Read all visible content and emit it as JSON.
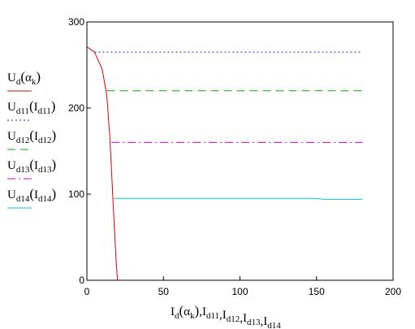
{
  "chart_data": {
    "type": "line",
    "xlim": [
      0,
      200
    ],
    "ylim": [
      0,
      300
    ],
    "x_ticks": [
      0,
      50,
      100,
      150,
      200
    ],
    "y_ticks": [
      0,
      100,
      200,
      300
    ],
    "grid": false,
    "legend_placement": "left",
    "xlabel_parts": [
      {
        "base": "I",
        "sub": "d",
        "arg": "α",
        "argsub": "k"
      },
      {
        "base": "I",
        "sub": "d11"
      },
      {
        "base": "I",
        "sub": "d12"
      },
      {
        "base": "I",
        "sub": "d13"
      },
      {
        "base": "I",
        "sub": "d14"
      }
    ],
    "series": [
      {
        "key": "ud",
        "base": "U",
        "sub": "d",
        "arg_base": "α",
        "arg_sub": "k",
        "color": "#e00000",
        "dash": "",
        "x": [
          0,
          5,
          10,
          13,
          15,
          16,
          17,
          18,
          19,
          20
        ],
        "y": [
          271,
          265,
          245,
          215,
          165,
          130,
          95,
          60,
          25,
          0
        ]
      },
      {
        "key": "ud11",
        "base": "U",
        "sub": "d11",
        "arg_base": "I",
        "arg_sub": "d11",
        "color": "#2020c0",
        "dash": "2,3",
        "x": [
          5,
          180
        ],
        "y": [
          265,
          265
        ]
      },
      {
        "key": "ud12",
        "base": "U",
        "sub": "d12",
        "arg_base": "I",
        "arg_sub": "d12",
        "color": "#00b000",
        "dash": "10,6",
        "x": [
          13,
          180
        ],
        "y": [
          220,
          220
        ]
      },
      {
        "key": "ud13",
        "base": "U",
        "sub": "d13",
        "arg_base": "I",
        "arg_sub": "d13",
        "color": "#d000d0",
        "dash": "10,4,2,4",
        "x": [
          16,
          180
        ],
        "y": [
          160,
          160
        ]
      },
      {
        "key": "ud14",
        "base": "U",
        "sub": "d14",
        "arg_base": "I",
        "arg_sub": "d14",
        "color": "#00c8d0",
        "dash": "",
        "x": [
          17,
          150,
          155,
          180
        ],
        "y": [
          95,
          95,
          94,
          94
        ]
      }
    ]
  }
}
